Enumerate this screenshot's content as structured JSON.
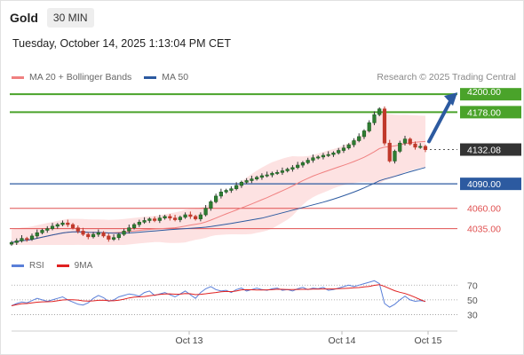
{
  "header": {
    "title": "Gold",
    "interval": "30 MIN"
  },
  "timestamp": "Tuesday, October 14, 2025 1:13:04 PM CET",
  "legend": {
    "bb_label": "MA 20 + Bollinger Bands",
    "ma50_label": "MA 50",
    "credit": "Research © 2025 Trading Central"
  },
  "rsi_legend": {
    "rsi_label": "RSI",
    "ma_label": "9MA"
  },
  "colors": {
    "bb_line": "#f08080",
    "bb_fill": "#fde2e2",
    "ma50": "#2c5aa0",
    "resistance": "#4aa32a",
    "support_blue": "#2c5aa0",
    "support_red": "#e05050",
    "candle": "#2f7d32",
    "wick": "#333333",
    "arrow": "#2c5aa0",
    "rsi_line": "#5a7fd8",
    "rsi_ma": "#e02020",
    "current_bg": "#333333"
  },
  "chart_data": {
    "type": "candlestick",
    "title": "Gold",
    "interval": "30 MIN",
    "x_tick_labels": [
      "Oct 13",
      "Oct 14",
      "Oct 15"
    ],
    "ylim": [
      4015,
      4210
    ],
    "levels": [
      {
        "value": 4200.0,
        "label": "4200.00",
        "kind": "resistance"
      },
      {
        "value": 4178.0,
        "label": "4178.00",
        "kind": "resistance"
      },
      {
        "value": 4132.08,
        "label": "4132.08",
        "kind": "current"
      },
      {
        "value": 4090.0,
        "label": "4090.00",
        "kind": "pivot"
      },
      {
        "value": 4060.0,
        "label": "4060.00",
        "kind": "support"
      },
      {
        "value": 4035.0,
        "label": "4035.00",
        "kind": "support"
      }
    ],
    "price_path": [
      4018,
      4020,
      4023,
      4022,
      4026,
      4030,
      4033,
      4035,
      4038,
      4040,
      4042,
      4040,
      4036,
      4032,
      4028,
      4025,
      4028,
      4030,
      4026,
      4022,
      4024,
      4028,
      4032,
      4036,
      4040,
      4043,
      4045,
      4047,
      4045,
      4048,
      4050,
      4048,
      4046,
      4049,
      4052,
      4050,
      4047,
      4052,
      4060,
      4068,
      4075,
      4080,
      4082,
      4084,
      4088,
      4092,
      4094,
      4096,
      4098,
      4100,
      4101,
      4103,
      4104,
      4106,
      4108,
      4110,
      4113,
      4116,
      4119,
      4122,
      4123,
      4125,
      4126,
      4128,
      4131,
      4134,
      4138,
      4143,
      4148,
      4155,
      4165,
      4175,
      4182,
      4140,
      4118,
      4130,
      4140,
      4145,
      4139,
      4135,
      4136,
      4132
    ],
    "rsi": {
      "levels": [
        70,
        50,
        30
      ],
      "ylim": [
        10,
        80
      ],
      "values": [
        42,
        45,
        47,
        46,
        49,
        52,
        50,
        48,
        50,
        52,
        54,
        50,
        47,
        44,
        43,
        46,
        52,
        56,
        53,
        48,
        50,
        54,
        56,
        58,
        57,
        55,
        60,
        62,
        56,
        58,
        60,
        57,
        54,
        58,
        62,
        57,
        52,
        60,
        65,
        68,
        64,
        62,
        63,
        60,
        64,
        66,
        62,
        64,
        66,
        64,
        63,
        65,
        66,
        63,
        64,
        62,
        65,
        67,
        64,
        66,
        65,
        67,
        63,
        64,
        66,
        68,
        70,
        68,
        70,
        72,
        74,
        76,
        72,
        45,
        40,
        44,
        50,
        55,
        50,
        48,
        49,
        48
      ]
    }
  }
}
